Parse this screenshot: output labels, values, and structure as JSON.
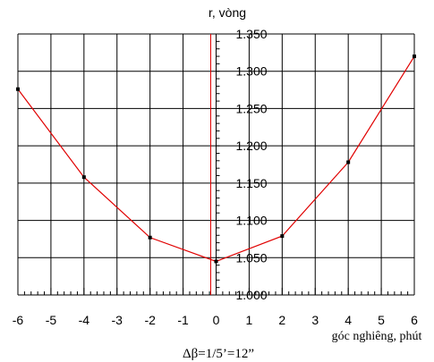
{
  "chart_data": {
    "type": "line",
    "title": "",
    "xlabel": "góc nghiêng, phút",
    "ylabel": "r, vòng",
    "caption": "Δβ=1/5’=12”",
    "x_ticks": [
      "-6",
      "-5",
      "-4",
      "-3",
      "-2",
      "-1",
      "0",
      "1",
      "2",
      "3",
      "4",
      "5",
      "6"
    ],
    "y_ticks": [
      "1.000",
      "1.050",
      "1.100",
      "1.150",
      "1.200",
      "1.250",
      "1.300",
      "1.350"
    ],
    "xlim": [
      -6,
      6
    ],
    "ylim": [
      1.0,
      1.35
    ],
    "grid": true,
    "vertical_marker_x": 0,
    "series": [
      {
        "x": [
          -6,
          -4,
          -2,
          0,
          2,
          4,
          6
        ],
        "y": [
          1.276,
          1.158,
          1.077,
          1.045,
          1.079,
          1.178,
          1.32
        ],
        "color": "#e00000"
      }
    ]
  },
  "colors": {
    "line": "#e00000",
    "marker": "#000000",
    "grid": "#000000",
    "vline": "#e00000"
  }
}
